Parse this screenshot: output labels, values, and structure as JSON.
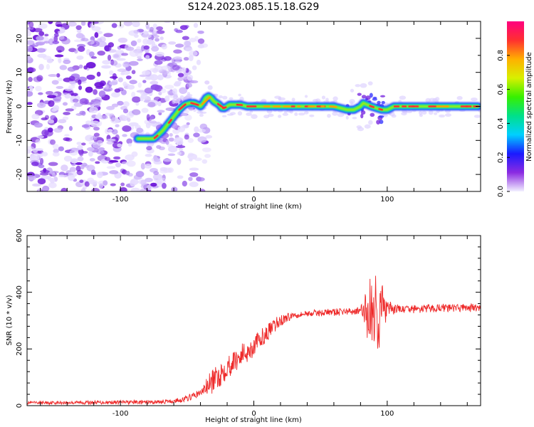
{
  "title": "S124.2023.085.15.18.G29",
  "chart_data": [
    {
      "type": "heatmap",
      "xlabel": "Height of straight line (km)",
      "ylabel": "Frequency (Hz)",
      "xlim": [
        -170,
        170
      ],
      "ylim": [
        -25,
        25
      ],
      "xticks": [
        -100,
        0,
        100
      ],
      "yticks": [
        -20,
        -10,
        0,
        10,
        20
      ],
      "colorbar": {
        "label": "Normalized spectral amplitude",
        "range": [
          0,
          1
        ],
        "ticks": [
          0.0,
          0.2,
          0.4,
          0.6,
          0.8
        ],
        "tick_labels": [
          "0.0",
          "0.2",
          "0.4",
          "0.6",
          "0.8"
        ],
        "colormap": [
          "#f2f0ff",
          "#8b2be2",
          "#1a1aff",
          "#00d0ff",
          "#00e08a",
          "#37f000",
          "#d8f000",
          "#ffb000",
          "#ff3030",
          "#ff007f"
        ]
      },
      "track": {
        "x": [
          -87,
          -80,
          -75,
          -72,
          -68,
          -64,
          -60,
          -56,
          -52,
          -48,
          -45,
          -42,
          -40,
          -38,
          -36,
          -34,
          -32,
          -30,
          -28,
          -26,
          -24,
          -22,
          -20,
          -18,
          -16,
          -14,
          -12,
          -10,
          -5,
          0,
          10,
          30,
          50,
          60,
          70,
          75,
          80,
          82,
          85,
          88,
          92,
          96,
          100,
          105,
          110,
          130,
          150,
          168
        ],
        "y": [
          -9.5,
          -9.5,
          -9.5,
          -8.5,
          -7,
          -5,
          -3,
          -1,
          0.5,
          1,
          1,
          0.5,
          0,
          1,
          2.5,
          3,
          2.5,
          1.5,
          1,
          0.5,
          -0.5,
          -0.5,
          0,
          0.5,
          0.5,
          0.5,
          0.5,
          0.5,
          0,
          0,
          0,
          0,
          0,
          0,
          -1,
          -1,
          0,
          1,
          0.5,
          0,
          -0.5,
          -1,
          -1,
          0,
          0,
          0,
          0,
          0
        ]
      },
      "noise_region_x": [
        -170,
        -60
      ]
    },
    {
      "type": "line",
      "xlabel": "Height of straight line (km)",
      "ylabel": "SNR (10 * v/v)",
      "xlim": [
        -170,
        170
      ],
      "ylim": [
        0,
        600
      ],
      "xticks": [
        -100,
        0,
        100
      ],
      "yticks": [
        0,
        200,
        400,
        600
      ],
      "color": "#ee2a2a",
      "trend": {
        "x": [
          -170,
          -100,
          -80,
          -60,
          -50,
          -40,
          -30,
          -20,
          -10,
          0,
          10,
          20,
          30,
          40,
          50,
          60,
          70,
          80,
          100,
          120,
          140,
          170
        ],
        "y": [
          10,
          12,
          12,
          15,
          25,
          45,
          90,
          140,
          175,
          210,
          255,
          300,
          320,
          325,
          328,
          330,
          332,
          335,
          340,
          340,
          345,
          345
        ]
      },
      "noise_amplitude": {
        "x": [
          -170,
          -60,
          -40,
          -30,
          -20,
          0,
          20,
          30,
          80,
          84,
          90,
          95,
          100,
          110,
          170
        ],
        "y": [
          6,
          8,
          15,
          50,
          45,
          40,
          25,
          12,
          15,
          90,
          200,
          140,
          30,
          15,
          15
        ]
      }
    }
  ]
}
